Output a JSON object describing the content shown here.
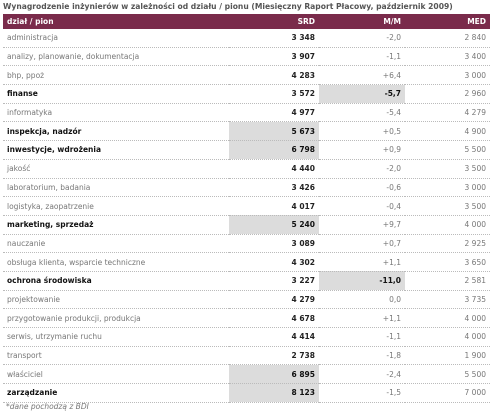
{
  "header": {
    "title": "Wynagrodzenie inżynierów w zależności od działu / pionu (Miesięczny Raport Płacowy, październik 2009)"
  },
  "table": {
    "columns": [
      "dział / pion",
      "SRD",
      "M/M",
      "MED"
    ],
    "header_color": "#7a2b4b",
    "highlight_color": "#dcdcdc",
    "rows": [
      {
        "cells": [
          "administracja",
          "3 348",
          "-2,0",
          "2 840"
        ]
      },
      {
        "cells": [
          "analizy, planowanie, dokumentacja",
          "3 907",
          "-1,1",
          "3 400"
        ]
      },
      {
        "cells": [
          "bhp, ppoż",
          "4 283",
          "+6,4",
          "3 000"
        ]
      },
      {
        "cells": [
          "finanse",
          "3 572",
          "-5,7",
          "2 960"
        ],
        "bold": true,
        "highlight": 2
      },
      {
        "cells": [
          "informatyka",
          "4 977",
          "-5,4",
          "4 279"
        ]
      },
      {
        "cells": [
          "inspekcja, nadzór",
          "5 673",
          "+0,5",
          "4 900"
        ],
        "bold": true,
        "highlight": 1
      },
      {
        "cells": [
          "inwestycje, wdrożenia",
          "6 798",
          "+0,9",
          "5 500"
        ],
        "bold": true,
        "highlight": 1
      },
      {
        "cells": [
          "jakość",
          "4 440",
          "-2,0",
          "3 500"
        ]
      },
      {
        "cells": [
          "laboratorium, badania",
          "3 426",
          "-0,6",
          "3 000"
        ]
      },
      {
        "cells": [
          "logistyka, zaopatrzenie",
          "4 017",
          "-0,4",
          "3 500"
        ]
      },
      {
        "cells": [
          "marketing, sprzedaż",
          "5 240",
          "+9,7",
          "4 000"
        ],
        "bold": true,
        "highlight": 1
      },
      {
        "cells": [
          "nauczanie",
          "3 089",
          "+0,7",
          "2 925"
        ]
      },
      {
        "cells": [
          "obsługa klienta, wsparcie techniczne",
          "4 302",
          "+1,1",
          "3 650"
        ]
      },
      {
        "cells": [
          "ochrona środowiska",
          "3 227",
          "-11,0",
          "2 581"
        ],
        "bold": true,
        "highlight": 2
      },
      {
        "cells": [
          "projektowanie",
          "4 279",
          "0,0",
          "3 735"
        ]
      },
      {
        "cells": [
          "przygotowanie produkcji, produkcja",
          "4 678",
          "+1,1",
          "4 000"
        ]
      },
      {
        "cells": [
          "serwis, utrzymanie ruchu",
          "4 414",
          "-1,1",
          "4 000"
        ]
      },
      {
        "cells": [
          "transport",
          "2 738",
          "-1,8",
          "1 900"
        ]
      },
      {
        "cells": [
          "właściciel",
          "6 895",
          "-2,4",
          "5 500"
        ],
        "highlight": 1
      },
      {
        "cells": [
          "zarządzanie",
          "8 123",
          "-1,5",
          "7 000"
        ],
        "bold": true,
        "highlight": 1
      }
    ]
  },
  "footer": {
    "note": "*dane pochodzą z BDI"
  }
}
